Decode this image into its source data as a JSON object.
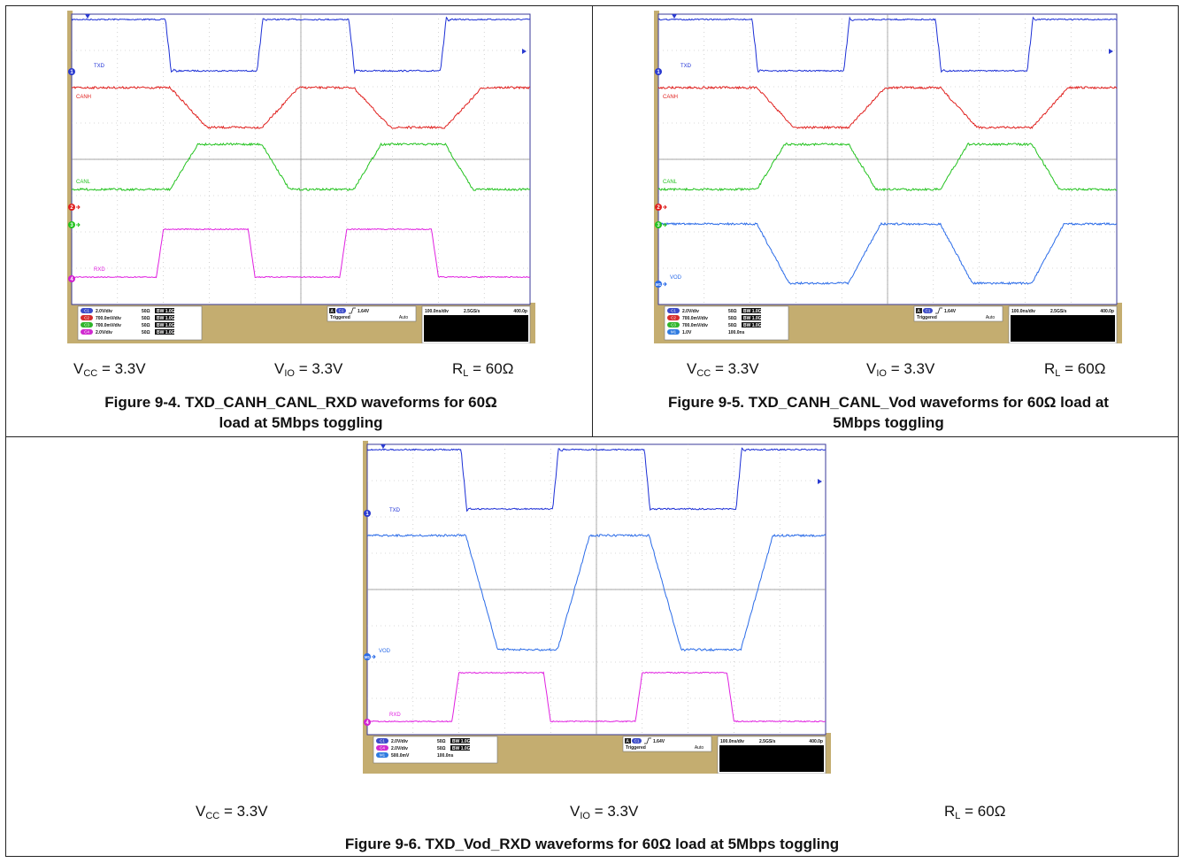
{
  "figures": [
    {
      "caption": "Figure 9-4. TXD_CANH_CANL_RXD waveforms for 60Ω load at 5Mbps toggling",
      "params": [
        {
          "label": "V",
          "sub": "CC",
          "value": " = 3.3V"
        },
        {
          "label": "V",
          "sub": "IO",
          "value": " = 3.3V"
        },
        {
          "label": "R",
          "sub": "L",
          "value": " = 60Ω"
        }
      ],
      "traces": [
        {
          "name": "TXD",
          "marker": "1",
          "color": "#1c2fd6"
        },
        {
          "name": "CANH",
          "color": "#e0201e"
        },
        {
          "name": "CANL",
          "color": "#22c21e"
        },
        {
          "name": "RXD",
          "marker": "4",
          "color": "#e020e0"
        }
      ],
      "markers": [
        "1",
        "2",
        "3",
        "4"
      ],
      "channel_settings": [
        {
          "ch": "C1",
          "scale": "2.0V/div",
          "imp": "50Ω",
          "bw": "BW 1.0G",
          "color": "#3a4ac8"
        },
        {
          "ch": "C2",
          "scale": "700.0mV/div",
          "imp": "50Ω",
          "bw": "BW 1.0G",
          "color": "#d52b2b"
        },
        {
          "ch": "C3",
          "scale": "700.0mV/div",
          "imp": "50Ω",
          "bw": "BW 1.0G",
          "color": "#2fb52b"
        },
        {
          "ch": "C4",
          "scale": "2.0V/div",
          "imp": "50Ω",
          "bw": "BW 1.0G",
          "color": "#d02ad0"
        }
      ],
      "trigger": {
        "ch": "C1",
        "level": "1.64V",
        "status": "Triggered",
        "mode": "Auto"
      },
      "timebase": {
        "scale": "100.0ns/div",
        "rate": "2.5GS/s",
        "points": "400.0p"
      }
    },
    {
      "caption": "Figure 9-5. TXD_CANH_CANL_Vod waveforms for 60Ω load at 5Mbps toggling",
      "params": [
        {
          "label": "V",
          "sub": "CC",
          "value": " = 3.3V"
        },
        {
          "label": "V",
          "sub": "IO",
          "value": " = 3.3V"
        },
        {
          "label": "R",
          "sub": "L",
          "value": " = 60Ω"
        }
      ],
      "traces": [
        {
          "name": "TXD",
          "marker": "1",
          "color": "#1c2fd6"
        },
        {
          "name": "CANH",
          "color": "#e0201e"
        },
        {
          "name": "CANL",
          "color": "#22c21e"
        },
        {
          "name": "VOD",
          "marker": "M1",
          "color": "#2a6be8"
        }
      ],
      "markers": [
        "1",
        "2",
        "3",
        "M1"
      ],
      "channel_settings": [
        {
          "ch": "C1",
          "scale": "2.0V/div",
          "imp": "50Ω",
          "bw": "BW 1.0G",
          "color": "#3a4ac8"
        },
        {
          "ch": "C2",
          "scale": "700.0mV/div",
          "imp": "50Ω",
          "bw": "BW 1.0G",
          "color": "#d52b2b"
        },
        {
          "ch": "C3",
          "scale": "700.0mV/div",
          "imp": "50Ω",
          "bw": "BW 1.0G",
          "color": "#2fb52b"
        },
        {
          "ch": "M1",
          "scale": "1.0V",
          "imp": "100.0ns",
          "bw": "",
          "color": "#2f7be0"
        }
      ],
      "trigger": {
        "ch": "C1",
        "level": "1.64V",
        "status": "Triggered",
        "mode": "Auto"
      },
      "timebase": {
        "scale": "100.0ns/div",
        "rate": "2.5GS/s",
        "points": "400.0p"
      }
    },
    {
      "caption": "Figure 9-6. TXD_Vod_RXD waveforms for 60Ω load at 5Mbps toggling",
      "params": [
        {
          "label": "V",
          "sub": "CC",
          "value": " = 3.3V"
        },
        {
          "label": "V",
          "sub": "IO",
          "value": " = 3.3V"
        },
        {
          "label": "R",
          "sub": "L",
          "value": " = 60Ω"
        }
      ],
      "traces": [
        {
          "name": "TXD",
          "marker": "1",
          "color": "#1c2fd6"
        },
        {
          "name": "VOD",
          "marker": "M1",
          "color": "#2a6be8"
        },
        {
          "name": "RXD",
          "marker": "4",
          "color": "#e020e0"
        }
      ],
      "markers": [
        "1",
        "M1",
        "4"
      ],
      "channel_settings": [
        {
          "ch": "C1",
          "scale": "2.0V/div",
          "imp": "50Ω",
          "bw": "BW 1.0G",
          "color": "#3a4ac8"
        },
        {
          "ch": "C4",
          "scale": "2.0V/div",
          "imp": "50Ω",
          "bw": "BW 1.0G",
          "color": "#d02ad0"
        },
        {
          "ch": "M1",
          "scale": "500.0mV",
          "imp": "100.0ns",
          "bw": "",
          "color": "#2f7be0"
        }
      ],
      "trigger": {
        "ch": "C1",
        "level": "1.64V",
        "status": "Triggered",
        "mode": "Auto"
      },
      "timebase": {
        "scale": "100.0ns/div",
        "rate": "2.5GS/s",
        "points": "400.0p"
      }
    }
  ]
}
